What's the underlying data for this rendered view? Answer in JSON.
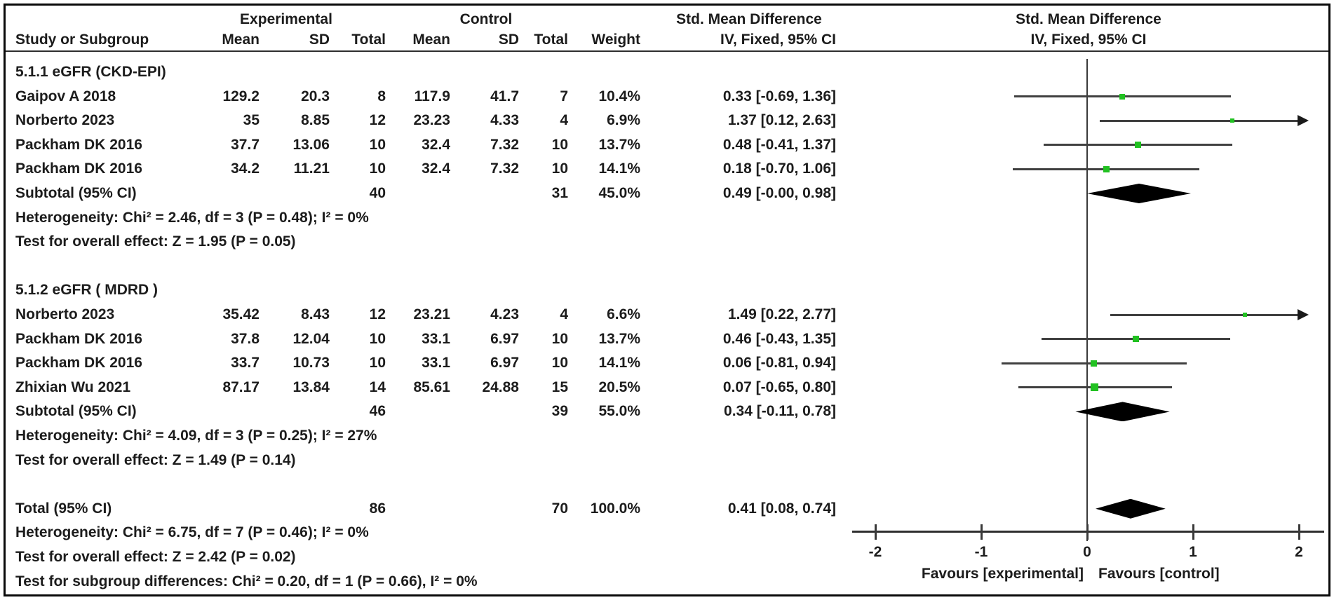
{
  "chart_data": {
    "type": "forest",
    "effect_measure": "Std. Mean Difference",
    "method": "IV, Fixed, 95% CI",
    "col_headers": {
      "study": "Study or Subgroup",
      "exp": "Experimental",
      "ctl": "Control",
      "mean": "Mean",
      "sd": "SD",
      "total": "Total",
      "weight": "Weight",
      "effect_title": "Std. Mean Difference",
      "effect_sub": "IV, Fixed, 95% CI"
    },
    "rows": [
      {
        "type": "section",
        "name": "5.1.1 eGFR (CKD-EPI)"
      },
      {
        "type": "study",
        "name": "Gaipov A 2018",
        "mean1": "129.2",
        "sd1": "20.3",
        "total1": "8",
        "mean2": "117.9",
        "sd2": "41.7",
        "total2": "7",
        "weight": "10.4%",
        "ci": "0.33 [-0.69, 1.36]",
        "est": 0.33,
        "lo": -0.69,
        "hi": 1.36,
        "w": 10.4,
        "arrow": false
      },
      {
        "type": "study",
        "name": "Norberto 2023",
        "mean1": "35",
        "sd1": "8.85",
        "total1": "12",
        "mean2": "23.23",
        "sd2": "4.33",
        "total2": "4",
        "weight": "6.9%",
        "ci": "1.37 [0.12, 2.63]",
        "est": 1.37,
        "lo": 0.12,
        "hi": 2.63,
        "w": 6.9,
        "arrow": true
      },
      {
        "type": "study",
        "name": "Packham DK 2016",
        "mean1": "37.7",
        "sd1": "13.06",
        "total1": "10",
        "mean2": "32.4",
        "sd2": "7.32",
        "total2": "10",
        "weight": "13.7%",
        "ci": "0.48 [-0.41, 1.37]",
        "est": 0.48,
        "lo": -0.41,
        "hi": 1.37,
        "w": 13.7,
        "arrow": false
      },
      {
        "type": "study",
        "name": "Packham DK 2016",
        "mean1": "34.2",
        "sd1": "11.21",
        "total1": "10",
        "mean2": "32.4",
        "sd2": "7.32",
        "total2": "10",
        "weight": "14.1%",
        "ci": "0.18 [-0.70, 1.06]",
        "est": 0.18,
        "lo": -0.7,
        "hi": 1.06,
        "w": 14.1,
        "arrow": false
      },
      {
        "type": "subtotal",
        "name": "Subtotal (95% CI)",
        "total1": "40",
        "total2": "31",
        "weight": "45.0%",
        "ci": "0.49 [-0.00, 0.98]",
        "est": 0.49,
        "lo": 0,
        "hi": 0.98
      },
      {
        "type": "text",
        "name": "Heterogeneity: Chi² = 2.46, df = 3 (P = 0.48); I² = 0%"
      },
      {
        "type": "text",
        "name": "Test for overall effect: Z = 1.95 (P = 0.05)"
      },
      {
        "type": "blank"
      },
      {
        "type": "section",
        "name": "5.1.2 eGFR ( MDRD )"
      },
      {
        "type": "study",
        "name": "Norberto 2023",
        "mean1": "35.42",
        "sd1": "8.43",
        "total1": "12",
        "mean2": "23.21",
        "sd2": "4.23",
        "total2": "4",
        "weight": "6.6%",
        "ci": "1.49 [0.22, 2.77]",
        "est": 1.49,
        "lo": 0.22,
        "hi": 2.77,
        "w": 6.6,
        "arrow": true
      },
      {
        "type": "study",
        "name": "Packham DK 2016",
        "mean1": "37.8",
        "sd1": "12.04",
        "total1": "10",
        "mean2": "33.1",
        "sd2": "6.97",
        "total2": "10",
        "weight": "13.7%",
        "ci": "0.46 [-0.43, 1.35]",
        "est": 0.46,
        "lo": -0.43,
        "hi": 1.35,
        "w": 13.7,
        "arrow": false
      },
      {
        "type": "study",
        "name": "Packham DK 2016",
        "mean1": "33.7",
        "sd1": "10.73",
        "total1": "10",
        "mean2": "33.1",
        "sd2": "6.97",
        "total2": "10",
        "weight": "14.1%",
        "ci": "0.06 [-0.81, 0.94]",
        "est": 0.06,
        "lo": -0.81,
        "hi": 0.94,
        "w": 14.1,
        "arrow": false
      },
      {
        "type": "study",
        "name": "Zhixian Wu 2021",
        "mean1": "87.17",
        "sd1": "13.84",
        "total1": "14",
        "mean2": "85.61",
        "sd2": "24.88",
        "total2": "15",
        "weight": "20.5%",
        "ci": "0.07 [-0.65, 0.80]",
        "est": 0.07,
        "lo": -0.65,
        "hi": 0.8,
        "w": 20.5,
        "arrow": false
      },
      {
        "type": "subtotal",
        "name": "Subtotal (95% CI)",
        "total1": "46",
        "total2": "39",
        "weight": "55.0%",
        "ci": "0.34 [-0.11, 0.78]",
        "est": 0.34,
        "lo": -0.11,
        "hi": 0.78
      },
      {
        "type": "text",
        "name": "Heterogeneity: Chi² = 4.09, df = 3 (P = 0.25); I² = 27%"
      },
      {
        "type": "text",
        "name": "Test for overall effect: Z = 1.49 (P = 0.14)"
      },
      {
        "type": "blank"
      },
      {
        "type": "total",
        "name": "Total (95% CI)",
        "total1": "86",
        "total2": "70",
        "weight": "100.0%",
        "ci": "0.41 [0.08, 0.74]",
        "est": 0.41,
        "lo": 0.08,
        "hi": 0.74
      },
      {
        "type": "text",
        "name": "Heterogeneity: Chi² = 6.75, df = 7 (P = 0.46); I² = 0%"
      },
      {
        "type": "text",
        "name": "Test for overall effect: Z = 2.42 (P = 0.02)"
      },
      {
        "type": "text",
        "name": "Test for subgroup differences: Chi² = 0.20, df = 1 (P = 0.66), I² = 0%"
      }
    ],
    "axis": {
      "ticks": [
        -2,
        -1,
        0,
        1,
        2
      ],
      "xmin": -2.2,
      "xmax": 2.2,
      "favours_left": "Favours [experimental]",
      "favours_right": "Favours [control]"
    },
    "colors": {
      "marker_green": "#21c121",
      "diamond_black": "#000000",
      "ci_line": "#404040",
      "text": "#1c1c1c"
    }
  }
}
